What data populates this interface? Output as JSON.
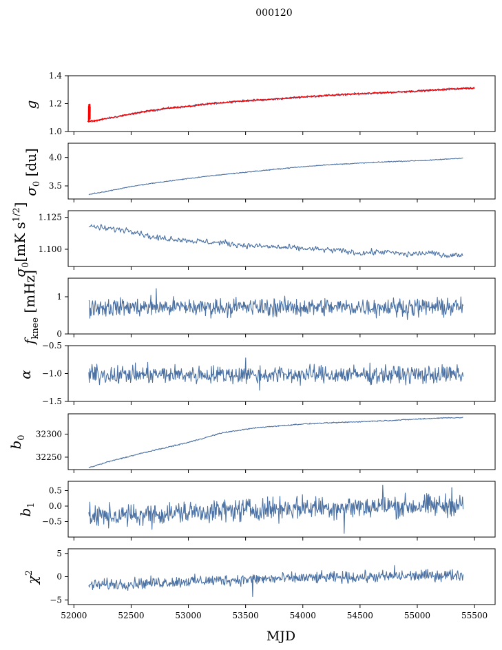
{
  "title": "000120",
  "xlabel": "MJD",
  "colors": {
    "series": "#4c72a4",
    "fit": "#ff0000",
    "axis": "#000000"
  },
  "chart_data": {
    "type": "line",
    "title": "000120",
    "xlabel": "MJD",
    "xlim": [
      51950,
      55680
    ],
    "xticks": [
      52000,
      52500,
      53000,
      53500,
      54000,
      54500,
      55000,
      55500
    ],
    "xtick_labels": [
      "52000",
      "52500",
      "53000",
      "53500",
      "54000",
      "54500",
      "55000",
      "55500"
    ],
    "panels": [
      {
        "ylabel": "g",
        "ylim": [
          1.0,
          1.4
        ],
        "yticks": [
          1.0,
          1.2,
          1.4
        ],
        "ytick_labels": [
          "1.0",
          "1.2",
          "1.4"
        ],
        "series": [
          {
            "color": "#4c72a4",
            "x": [
              52120,
              52200,
              52400,
              52600,
              52800,
              53000,
              53200,
              53400,
              53600,
              53800,
              54000,
              54200,
              54400,
              54600,
              54800,
              55000,
              55200,
              55400,
              55500
            ],
            "y": [
              1.07,
              1.08,
              1.11,
              1.14,
              1.165,
              1.18,
              1.2,
              1.215,
              1.225,
              1.235,
              1.248,
              1.258,
              1.267,
              1.275,
              1.282,
              1.29,
              1.3,
              1.31,
              1.31
            ],
            "noise": 0.004
          },
          {
            "color": "#ff0000",
            "x": [
              52120,
              52200,
              52400,
              52600,
              52800,
              53000,
              53200,
              53400,
              53600,
              53800,
              54000,
              54200,
              54400,
              54600,
              54800,
              55000,
              55200,
              55400,
              55500
            ],
            "y": [
              1.07,
              1.08,
              1.11,
              1.14,
              1.165,
              1.18,
              1.2,
              1.215,
              1.225,
              1.235,
              1.248,
              1.258,
              1.267,
              1.275,
              1.282,
              1.29,
              1.3,
              1.31,
              1.31
            ],
            "noise": 0.003,
            "spike_x": 52127,
            "spike_y": [
              1.06,
              1.2
            ]
          }
        ]
      },
      {
        "ylabel": "σ0 [du]",
        "ylim": [
          3.27,
          4.25
        ],
        "yticks": [
          3.5,
          4.0
        ],
        "ytick_labels": [
          "3.5",
          "4.0"
        ],
        "series": [
          {
            "color": "#4c72a4",
            "x": [
              52130,
              52300,
              52500,
              52700,
              53000,
              53300,
              53600,
              53900,
              54200,
              54500,
              54800,
              55100,
              55400
            ],
            "y": [
              3.35,
              3.41,
              3.49,
              3.55,
              3.63,
              3.7,
              3.76,
              3.82,
              3.87,
              3.9,
              3.93,
              3.95,
              3.99
            ],
            "noise": 0.004
          }
        ]
      },
      {
        "ylabel": "σ0[mK s1/2]",
        "ylim": [
          1.0865,
          1.1302
        ],
        "yticks": [
          1.1,
          1.125
        ],
        "ytick_labels": [
          "1.100",
          "1.125"
        ],
        "series": [
          {
            "color": "#4c72a4",
            "x": [
              52130,
              52300,
              52500,
              52700,
              52900,
              53100,
              53300,
              53500,
              53700,
              53900,
              54100,
              54300,
              54500,
              54700,
              54900,
              55100,
              55300,
              55400
            ],
            "y": [
              1.118,
              1.116,
              1.115,
              1.109,
              1.108,
              1.106,
              1.105,
              1.103,
              1.102,
              1.101,
              1.1,
              1.099,
              1.097,
              1.098,
              1.096,
              1.097,
              1.095,
              1.096
            ],
            "noise": 0.0015
          }
        ]
      },
      {
        "ylabel": "fknee [mHz]",
        "ylim": [
          0,
          1.5
        ],
        "yticks": [
          0,
          1
        ],
        "ytick_labels": [
          "0",
          "1"
        ],
        "series": [
          {
            "color": "#4c72a4",
            "x": [
              52130,
              55400
            ],
            "y": [
              0.72,
              0.72
            ],
            "noise": 0.12,
            "spikes": [
              [
                52720,
                1.22
              ]
            ]
          }
        ]
      },
      {
        "ylabel": "α",
        "ylim": [
          -1.5,
          -0.5
        ],
        "yticks": [
          -1.5,
          -1.0,
          -0.5
        ],
        "ytick_labels": [
          "−1.5",
          "−1.0",
          "−0.5"
        ],
        "series": [
          {
            "color": "#4c72a4",
            "x": [
              52130,
              55400
            ],
            "y": [
              -1.02,
              -1.02
            ],
            "noise": 0.08,
            "spikes": [
              [
                53500,
                -0.72
              ],
              [
                53620,
                -1.3
              ]
            ]
          }
        ]
      },
      {
        "ylabel": "b0",
        "ylim": [
          32223,
          32344
        ],
        "yticks": [
          32250,
          32300
        ],
        "ytick_labels": [
          "32250",
          "32300"
        ],
        "series": [
          {
            "color": "#4c72a4",
            "x": [
              52130,
              52300,
              52600,
              53000,
              53300,
              53600,
              54000,
              54400,
              54800,
              55200,
              55400
            ],
            "y": [
              32227,
              32240,
              32259,
              32282,
              32303,
              32314,
              32322,
              32326,
              32330,
              32335,
              32336
            ],
            "noise": 0.6
          }
        ]
      },
      {
        "ylabel": "b1",
        "ylim": [
          -1.0,
          0.8
        ],
        "yticks": [
          -0.5,
          0.0,
          0.5
        ],
        "ytick_labels": [
          "−0.5",
          "0.0",
          "0.5"
        ],
        "series": [
          {
            "color": "#4c72a4",
            "x": [
              52130,
              52500,
              53000,
              53500,
              54000,
              54500,
              55000,
              55400
            ],
            "y": [
              -0.35,
              -0.3,
              -0.2,
              -0.12,
              -0.05,
              -0.02,
              0.0,
              0.02
            ],
            "noise": 0.18,
            "spikes": [
              [
                54360,
                -0.88
              ],
              [
                54700,
                0.68
              ],
              [
                55300,
                0.6
              ]
            ]
          }
        ]
      },
      {
        "ylabel": "χ2",
        "ylim": [
          -6,
          6
        ],
        "yticks": [
          -5,
          0,
          5
        ],
        "ytick_labels": [
          "−5",
          "0",
          "5"
        ],
        "series": [
          {
            "color": "#4c72a4",
            "x": [
              52130,
              52500,
              53000,
              53500,
              54000,
              54500,
              55000,
              55400
            ],
            "y": [
              -1.8,
              -1.5,
              -1.0,
              -0.6,
              -0.3,
              -0.1,
              0.2,
              0.4
            ],
            "noise": 0.6,
            "spikes": [
              [
                53560,
                -4.3
              ],
              [
                54800,
                2.4
              ]
            ]
          }
        ]
      }
    ]
  }
}
